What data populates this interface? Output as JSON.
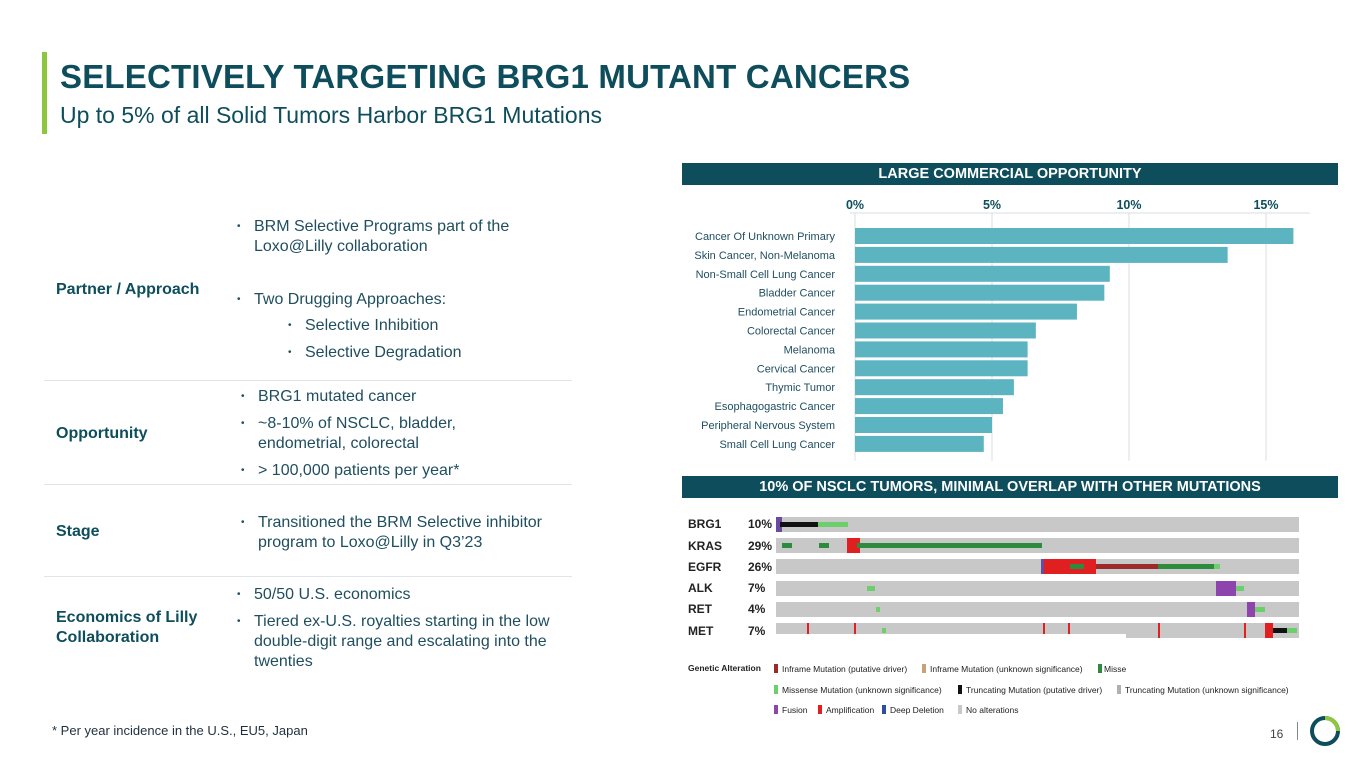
{
  "header": {
    "title": "SELECTIVELY TARGETING BRG1 MUTANT CANCERS",
    "subtitle": "Up to 5% of all Solid Tumors Harbor BRG1 Mutations"
  },
  "table": {
    "rows": [
      {
        "label": "Partner / Approach",
        "bullets": [
          "BRM Selective Programs part of the Loxo@Lilly collaboration",
          "Two Drugging Approaches:",
          "Selective Inhibition",
          "Selective Degradation"
        ]
      },
      {
        "label": "Opportunity",
        "bullets": [
          "BRG1 mutated cancer",
          "~8-10% of NSCLC, bladder, endometrial, colorectal",
          "> 100,000 patients per year*"
        ]
      },
      {
        "label": "Stage",
        "bullets": [
          "Transitioned the BRM Selective inhibitor program to Loxo@Lilly in Q3’23"
        ]
      },
      {
        "label": "Economics of Lilly Collaboration",
        "bullets": [
          "50/50 U.S. economics",
          "Tiered ex-U.S. royalties starting in the low double-digit range and escalating into the twenties"
        ]
      }
    ]
  },
  "sections": {
    "commercial_header": "LARGE COMMERCIAL OPPORTUNITY",
    "nsclc_header": "10% OF NSCLC TUMORS, MINIMAL OVERLAP WITH OTHER MUTATIONS"
  },
  "chart_data": {
    "type": "bar",
    "orientation": "horizontal",
    "title": "LARGE COMMERCIAL OPPORTUNITY",
    "xlabel": "",
    "ylabel": "",
    "xlim": [
      0,
      16.5
    ],
    "tick_values": [
      0,
      5,
      10,
      15
    ],
    "tick_labels": [
      "0%",
      "5%",
      "10%",
      "15%"
    ],
    "grid": true,
    "categories": [
      "Cancer Of Unknown Primary",
      "Skin Cancer, Non-Melanoma",
      "Non-Small Cell Lung Cancer",
      "Bladder Cancer",
      "Endometrial Cancer",
      "Colorectal Cancer",
      "Melanoma",
      "Cervical Cancer",
      "Thymic Tumor",
      "Esophagogastric Cancer",
      "Peripheral Nervous System",
      "Small Cell Lung Cancer"
    ],
    "values": [
      16.0,
      13.6,
      9.3,
      9.1,
      8.1,
      6.6,
      6.3,
      6.3,
      5.8,
      5.4,
      5.0,
      4.7
    ],
    "colors": {
      "bar": "#5bb4c0",
      "grid": "#d9dde0"
    }
  },
  "oncoprint": {
    "genes": [
      {
        "name": "BRG1",
        "pct": "10%"
      },
      {
        "name": "KRAS",
        "pct": "29%"
      },
      {
        "name": "EGFR",
        "pct": "26%"
      },
      {
        "name": "ALK",
        "pct": "7%"
      },
      {
        "name": "RET",
        "pct": "4%"
      },
      {
        "name": "MET",
        "pct": "7%"
      }
    ],
    "legend_title": "Genetic Alteration",
    "legend": [
      {
        "label": "Inframe Mutation (putative driver)",
        "color": "#9b2a2a"
      },
      {
        "label": "Inframe Mutation (unknown significance)",
        "color": "#c9a27a"
      },
      {
        "label": "Misse",
        "color": "#2e8b3d"
      },
      {
        "label": "Missense Mutation (unknown significance)",
        "color": "#6ccf6c"
      },
      {
        "label": "Truncating Mutation (putative driver)",
        "color": "#111111"
      },
      {
        "label": "Truncating Mutation (unknown significance)",
        "color": "#b0b0b0"
      },
      {
        "label": "Fusion",
        "color": "#8e44ad"
      },
      {
        "label": "Amplification",
        "color": "#e02020"
      },
      {
        "label": "Deep Deletion",
        "color": "#2c4fa0"
      },
      {
        "label": "No alterations",
        "color": "#c8c8c8"
      }
    ]
  },
  "footer": {
    "footnote": "* Per year incidence in the U.S., EU5, Japan",
    "page_number": "16"
  }
}
